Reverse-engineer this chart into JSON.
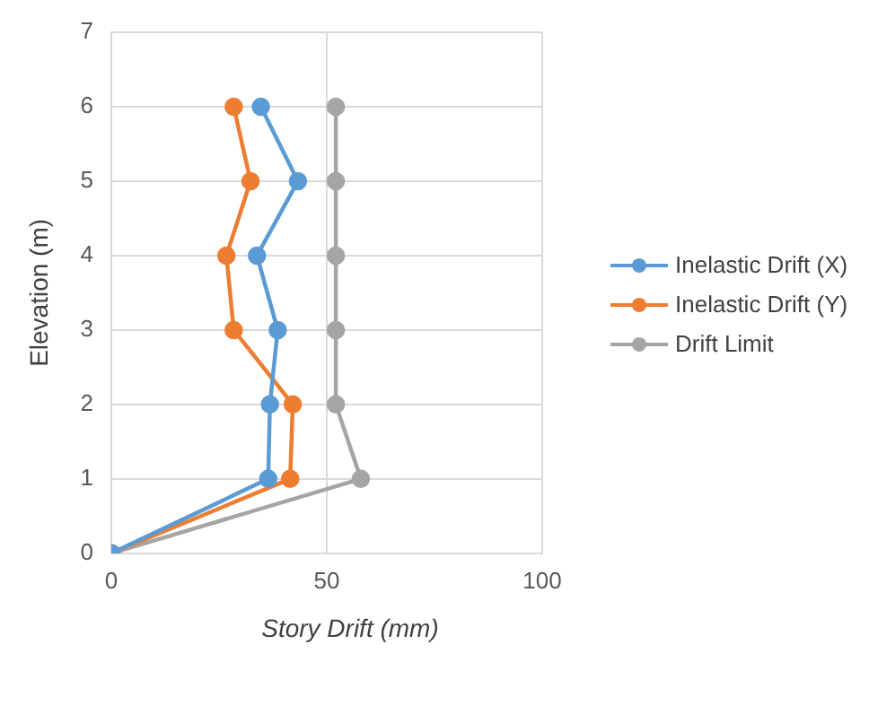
{
  "chart_data": {
    "type": "line",
    "xlabel": "Story Drift (mm)",
    "ylabel": "Elevation (m)",
    "xlim": [
      0,
      100
    ],
    "xticks": [
      0,
      50,
      100
    ],
    "ylim": [
      0,
      7
    ],
    "yticks": [
      0,
      1,
      2,
      3,
      4,
      5,
      6,
      7
    ],
    "grid": true,
    "legend": "right",
    "marker": "circle",
    "series": [
      {
        "name": "Inelastic Drift (X)",
        "color": "#5b9bd5",
        "x": [
          0,
          36.4,
          36.8,
          38.6,
          33.8,
          43.3,
          34.7
        ],
        "values": [
          0,
          1,
          2,
          3,
          4,
          5,
          6
        ]
      },
      {
        "name": "Inelastic Drift (Y)",
        "color": "#ed7d31",
        "x": [
          0,
          41.5,
          42.1,
          28.4,
          26.7,
          32.3,
          28.4
        ],
        "values": [
          0,
          1,
          2,
          3,
          4,
          5,
          6
        ]
      },
      {
        "name": "Drift Limit",
        "color": "#a5a5a5",
        "x": [
          0,
          57.9,
          52.1,
          52.1,
          52.1,
          52.1,
          52.1
        ],
        "values": [
          0,
          1,
          2,
          3,
          4,
          5,
          6
        ]
      }
    ]
  }
}
